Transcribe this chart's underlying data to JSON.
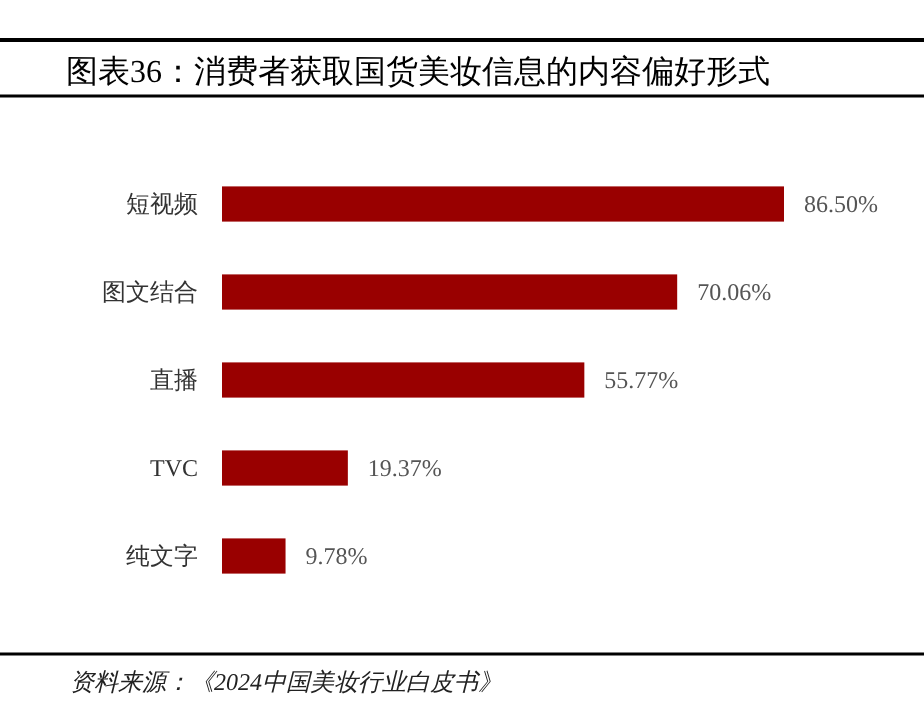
{
  "chart_data": {
    "type": "bar",
    "orientation": "horizontal",
    "title": "图表36：消费者获取国货美妆信息的内容偏好形式",
    "categories": [
      "短视频",
      "图文结合",
      "直播",
      "TVC",
      "纯文字"
    ],
    "values": [
      86.5,
      70.06,
      55.77,
      19.37,
      9.78
    ],
    "value_labels": [
      "86.50%",
      "70.06%",
      "55.77%",
      "19.37%",
      "9.78%"
    ],
    "color": "#990000",
    "annotations": [
      "资料来源：《2024中国美妆行业白皮书》"
    ]
  }
}
